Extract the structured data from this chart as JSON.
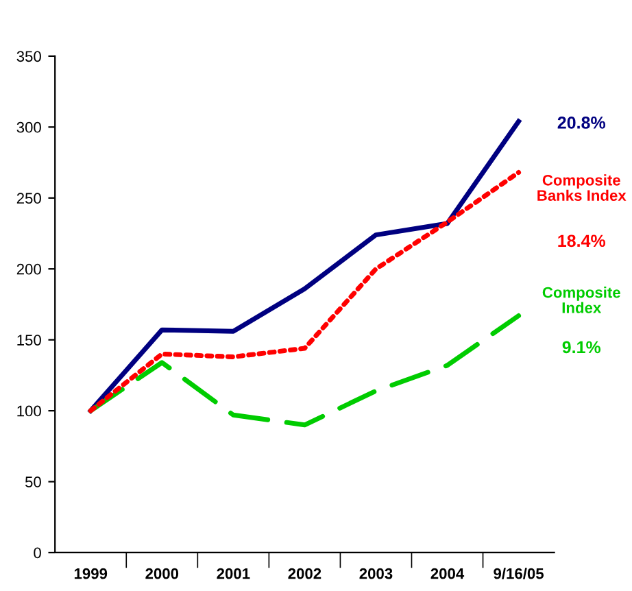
{
  "chart_data": {
    "type": "line",
    "categories": [
      "1999",
      "2000",
      "2001",
      "2002",
      "2003",
      "2004",
      "9/16/05"
    ],
    "series": [
      {
        "color": "#000080",
        "line_style": "solid",
        "values": [
          100,
          157,
          156,
          186,
          224,
          232,
          304
        ]
      },
      {
        "name": "Composite\nBanks Index",
        "color": "#ff0000",
        "line_style": "dotted",
        "values": [
          100,
          140,
          138,
          144,
          200,
          233,
          268
        ]
      },
      {
        "name": "Composite\nIndex",
        "color": "#00cc00",
        "line_style": "dashed",
        "values": [
          100,
          134,
          97,
          90,
          114,
          132,
          167
        ]
      }
    ],
    "annotations": [
      "20.8%",
      "18.4%",
      "9.1%"
    ],
    "ylim": [
      0,
      350
    ],
    "yticks": [
      0,
      50,
      100,
      150,
      200,
      250,
      300,
      350
    ],
    "grid": false,
    "legend": false,
    "marker": "none"
  }
}
